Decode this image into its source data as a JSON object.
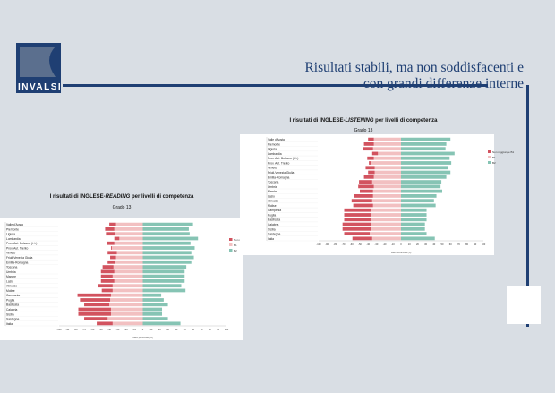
{
  "slide": {
    "title_line1": "Risultati stabili, ma non soddisfacenti e",
    "title_line2": "con grandi differenze interne",
    "logo_text": "INVALSI",
    "colors": {
      "navy": "#1f3f73",
      "red": "#d2535f",
      "pink": "#f2c0c1",
      "teal": "#86c4b4",
      "background": "#d9dee4"
    }
  },
  "chart_data": [
    {
      "type": "bar",
      "orientation": "horizontal-stacked-diverging",
      "title_prefix": "I risultati di INGLESE-",
      "title_emph": "READING",
      "title_suffix": " per livelli di competenza",
      "subtitle": "Grado 13",
      "xlabel": "Valori percentuali (%)",
      "xlim": [
        -100,
        100
      ],
      "xticks": [
        -100,
        -90,
        -80,
        -70,
        -60,
        -50,
        -40,
        -30,
        -20,
        -10,
        0,
        10,
        20,
        30,
        40,
        50,
        60,
        70,
        80,
        90,
        100
      ],
      "legend_position": "right",
      "categories": [
        "Valle d'Aosta",
        "Piemonte",
        "Liguria",
        "Lombardia",
        "Prov. Aut. Bolzano (i. t.)",
        "Prov. Aut. Trento",
        "Veneto",
        "Friuli-Venezia Giulia",
        "Emilia-Romagna",
        "Toscana",
        "Umbria",
        "Marche",
        "Lazio",
        "Abruzzo",
        "Molise",
        "Campania",
        "Puglia",
        "Basilicata",
        "Calabria",
        "Sicilia",
        "Sardegna",
        "Italia"
      ],
      "series": [
        {
          "name": "Non raggiunge B1",
          "color": "#d2535f",
          "values": [
            -8,
            -11,
            -11,
            -6,
            -9,
            -1,
            -11,
            -7,
            -9,
            -13,
            -16,
            -14,
            -16,
            -18,
            -13,
            -40,
            -36,
            -30,
            -39,
            -39,
            -28,
            -19
          ]
        },
        {
          "name": "B1",
          "color": "#f2c0c1",
          "values": [
            -32,
            -34,
            -33,
            -28,
            -34,
            -37,
            -31,
            -32,
            -33,
            -35,
            -34,
            -36,
            -34,
            -36,
            -36,
            -38,
            -39,
            -40,
            -38,
            -38,
            -42,
            -36
          ]
        },
        {
          "name": "B2",
          "color": "#86c4b4",
          "values": [
            60,
            55,
            56,
            66,
            57,
            62,
            58,
            61,
            58,
            52,
            50,
            50,
            50,
            46,
            51,
            22,
            25,
            30,
            23,
            23,
            30,
            45
          ]
        }
      ]
    },
    {
      "type": "bar",
      "orientation": "horizontal-stacked-diverging",
      "title_prefix": "I risultati di INGLESE-",
      "title_emph": "LISTENING",
      "title_suffix": " per livelli di competenza",
      "subtitle": "Grado 13",
      "xlabel": "Valori percentuali (%)",
      "xlim": [
        -100,
        100
      ],
      "xticks": [
        -100,
        -90,
        -80,
        -70,
        -60,
        -50,
        -40,
        -30,
        -20,
        -10,
        0,
        10,
        20,
        30,
        40,
        50,
        60,
        70,
        80,
        90,
        100
      ],
      "legend_position": "right",
      "categories": [
        "Valle d'Aosta",
        "Piemonte",
        "Liguria",
        "Lombardia",
        "Prov. Aut. Bolzano (i. t.)",
        "Prov. Aut. Trento",
        "Veneto",
        "Friuli-Venezia Giulia",
        "Emilia-Romagna",
        "Toscana",
        "Umbria",
        "Marche",
        "Lazio",
        "Abruzzo",
        "Molise",
        "Campania",
        "Puglia",
        "Basilicata",
        "Calabria",
        "Sicilia",
        "Sardegna",
        "Italia"
      ],
      "series": [
        {
          "name": "Non raggiunge B1",
          "color": "#d2535f",
          "values": [
            -7,
            -12,
            -12,
            -7,
            -8,
            -2,
            -11,
            -8,
            -12,
            -16,
            -19,
            -16,
            -23,
            -25,
            -24,
            -33,
            -33,
            -33,
            -35,
            -35,
            -31,
            -24
          ]
        },
        {
          "name": "B1",
          "color": "#f2c0c1",
          "values": [
            -33,
            -33,
            -34,
            -28,
            -33,
            -37,
            -32,
            -32,
            -33,
            -35,
            -33,
            -34,
            -34,
            -35,
            -34,
            -36,
            -36,
            -36,
            -36,
            -36,
            -38,
            -35
          ]
        },
        {
          "name": "B2",
          "color": "#86c4b4",
          "values": [
            60,
            55,
            54,
            65,
            59,
            61,
            57,
            60,
            55,
            49,
            48,
            50,
            43,
            40,
            42,
            31,
            31,
            31,
            29,
            29,
            31,
            41
          ]
        }
      ]
    }
  ]
}
